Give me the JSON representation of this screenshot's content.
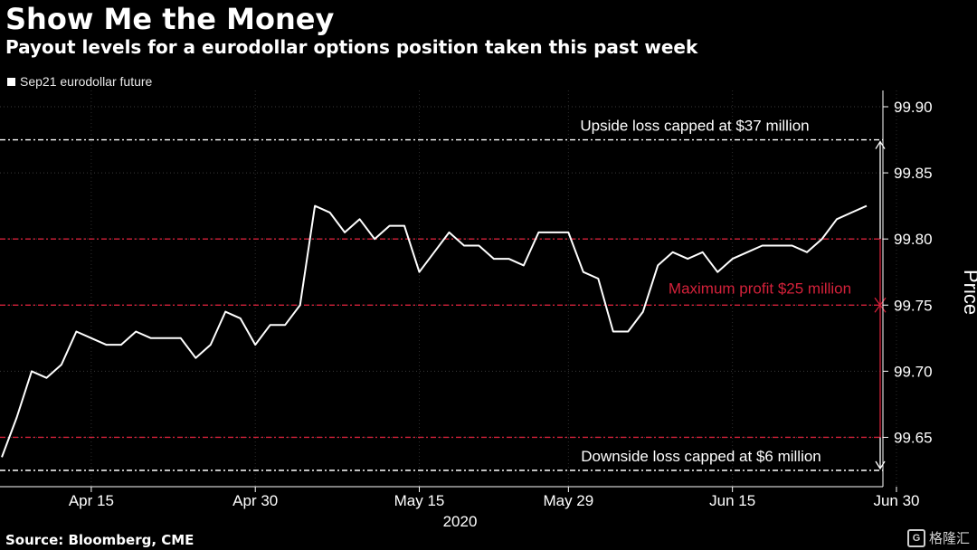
{
  "header": {
    "title": "Show Me the Money",
    "subtitle": "Payout levels for a eurodollar options position taken this past week"
  },
  "legend": {
    "label": "Sep21 eurodollar future"
  },
  "footer": {
    "source": "Source: Bloomberg, CME"
  },
  "watermark": {
    "text": "格隆汇",
    "logo": "G"
  },
  "chart_data": {
    "type": "line",
    "ylabel": "Price",
    "xlabel": "2020",
    "ylim": [
      99.625,
      99.9
    ],
    "y_ticks": [
      "99.65",
      "99.70",
      "99.75",
      "99.80",
      "99.85",
      "99.90"
    ],
    "y_tick_values": [
      99.65,
      99.7,
      99.75,
      99.8,
      99.85,
      99.9
    ],
    "x_tick_labels": [
      "Apr 15",
      "Apr 30",
      "May 15",
      "May 29",
      "Jun 15",
      "Jun 30"
    ],
    "x_tick_index": [
      6,
      17,
      28,
      38,
      49,
      60
    ],
    "x_year_label": "2020",
    "grid": true,
    "legend_position": "top-left",
    "series": [
      {
        "name": "Sep21 eurodollar future",
        "color": "#ffffff",
        "values": [
          99.635,
          99.665,
          99.7,
          99.695,
          99.705,
          99.73,
          99.725,
          99.72,
          99.72,
          99.73,
          99.725,
          99.725,
          99.725,
          99.71,
          99.72,
          99.745,
          99.74,
          99.72,
          99.735,
          99.735,
          99.75,
          99.825,
          99.82,
          99.805,
          99.815,
          99.8,
          99.81,
          99.81,
          99.775,
          99.79,
          99.805,
          99.795,
          99.795,
          99.785,
          99.785,
          99.78,
          99.805,
          99.805,
          99.805,
          99.775,
          99.77,
          99.73,
          99.73,
          99.745,
          99.78,
          99.79,
          99.785,
          99.79,
          99.775,
          99.785,
          99.79,
          99.795,
          99.795,
          99.795,
          99.79,
          99.8,
          99.815,
          99.82,
          99.825
        ]
      }
    ],
    "reference_lines": [
      {
        "value": 99.875,
        "color": "#ffffff",
        "label": "Upside loss capped at $37 million"
      },
      {
        "value": 99.8,
        "color": "#d4213a",
        "label": ""
      },
      {
        "value": 99.75,
        "color": "#d4213a",
        "label": "Maximum profit $25 million"
      },
      {
        "value": 99.65,
        "color": "#d4213a",
        "label": ""
      },
      {
        "value": 99.625,
        "color": "#ffffff",
        "label": "Downside loss capped at $6 million"
      }
    ]
  }
}
